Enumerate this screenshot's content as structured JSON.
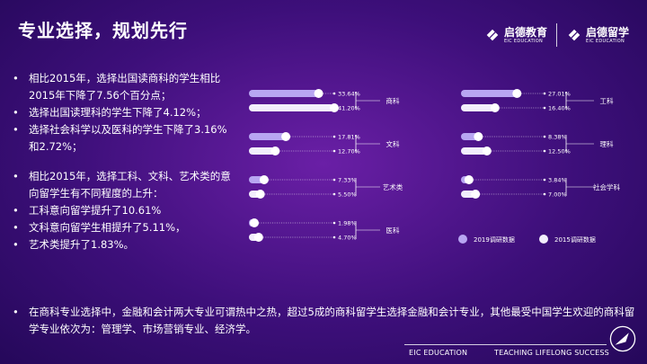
{
  "title": "专业选择，规划先行",
  "logos": {
    "left": {
      "cn": "启德教育",
      "en": "EIC EDUCATION"
    },
    "right": {
      "cn": "启德留学",
      "en": "EIC EDUCATION"
    }
  },
  "bullets": [
    "相比2015年，选择出国读商科的学生相比2015年下降了7.56个百分点；",
    "选择出国读理科的学生下降了4.12%；",
    "选择社会科学以及医科的学生下降了3.16%和2.72%；",
    "",
    "相比2015年，选择工科、文科、艺术类的意向留学生有不同程度的上升：",
    "工科意向留学提升了10.61%",
    "文科意向留学生相提升了5.11%，",
    "艺术类提升了1.83%。"
  ],
  "bottom_text": "在商科专业选择中，金融和会计两大专业可谓热中之热，超过5成的商科留学生选择金融和会计专业，其他最受中国学生欢迎的商科留学专业依次为：管理学、市场营销专业、经济学。",
  "footer": {
    "left": "EIC EDUCATION",
    "right": "TEACHING LIFELONG SUCCESS"
  },
  "colors": {
    "series_2019": "#b8a6f2",
    "series_2015": "#f2eefc",
    "track": "#ffffff"
  },
  "chart_data": {
    "type": "bar",
    "series": [
      {
        "name": "2019调研数据"
      },
      {
        "name": "2015调研数据"
      }
    ],
    "categories": [
      {
        "name": "商科",
        "values": [
          "33.64%",
          "41.20%"
        ],
        "num": [
          33.64,
          41.2
        ]
      },
      {
        "name": "文科",
        "values": [
          "17.81%",
          "12.70%"
        ],
        "num": [
          17.81,
          12.7
        ]
      },
      {
        "name": "艺术类",
        "values": [
          "7.33%",
          "5.50%"
        ],
        "num": [
          7.33,
          5.5
        ]
      },
      {
        "name": "医科",
        "values": [
          "1.98%",
          "4.70%"
        ],
        "num": [
          1.98,
          4.7
        ]
      },
      {
        "name": "工科",
        "values": [
          "27.01%",
          "16.40%"
        ],
        "num": [
          27.01,
          16.4
        ]
      },
      {
        "name": "理科",
        "values": [
          "8.38%",
          "12.50%"
        ],
        "num": [
          8.38,
          12.5
        ]
      },
      {
        "name": "社会学科",
        "values": [
          "3.84%",
          "7.00%"
        ],
        "num": [
          3.84,
          7.0
        ]
      }
    ]
  }
}
